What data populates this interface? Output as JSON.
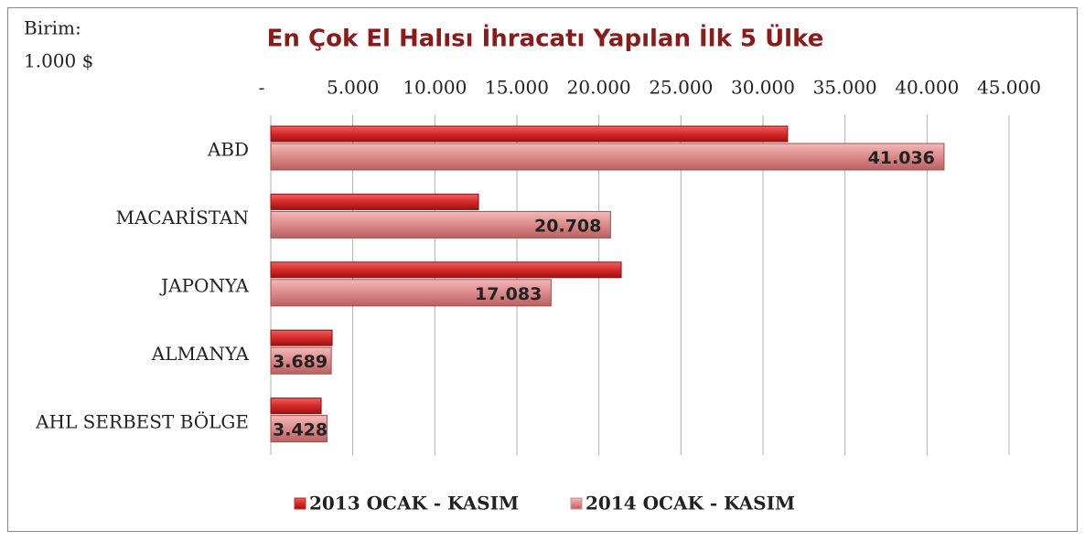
{
  "chart_data": {
    "type": "bar",
    "orientation": "horizontal",
    "title": "En Çok El Halısı İhracatı Yapılan İlk 5 Ülke",
    "annotations": [
      "Birim:",
      "1.000 $"
    ],
    "categories": [
      "ABD",
      "MACARİSTAN",
      "JAPONYA",
      "ALMANYA",
      "AHL SERBEST BÖLGE"
    ],
    "series": [
      {
        "name": "2013 OCAK - KASIM",
        "color": "#d42a2a",
        "values": [
          31500,
          12660,
          21360,
          3740,
          3070
        ]
      },
      {
        "name": "2014 OCAK - KASIM",
        "color": "#dc8a8a",
        "values": [
          41036,
          20708,
          17083,
          3689,
          3428
        ],
        "value_labels": [
          "41.036",
          "20.708",
          "17.083",
          "3.689",
          "3.428"
        ]
      }
    ],
    "xlim": [
      0,
      45000
    ],
    "xticks": [
      {
        "value": 0,
        "label": "-"
      },
      {
        "value": 5000,
        "label": "5.000"
      },
      {
        "value": 10000,
        "label": "10.000"
      },
      {
        "value": 15000,
        "label": "15.000"
      },
      {
        "value": 20000,
        "label": "20.000"
      },
      {
        "value": 25000,
        "label": "25.000"
      },
      {
        "value": 30000,
        "label": "30.000"
      },
      {
        "value": 35000,
        "label": "35.000"
      },
      {
        "value": 40000,
        "label": "40.000"
      },
      {
        "value": 45000,
        "label": "45.000"
      }
    ],
    "grid": true,
    "legend": "bottom"
  }
}
